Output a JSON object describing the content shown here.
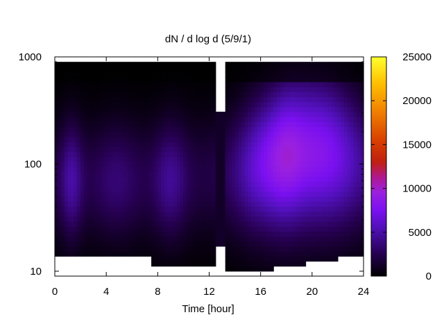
{
  "chart_data": {
    "type": "heatmap",
    "title": "dN / d log d (5/9/1)",
    "xlabel": "Time [hour]",
    "ylabel": "",
    "xlim": [
      0,
      24
    ],
    "ylim": [
      9,
      1000
    ],
    "y_scale": "log",
    "x_ticks": [
      "0",
      "4",
      "8",
      "12",
      "16",
      "20",
      "24"
    ],
    "y_ticks": [
      "10",
      "100",
      "1000"
    ],
    "colorbar": {
      "ticks": [
        "0",
        "5000",
        "10000",
        "15000",
        "20000",
        "25000"
      ],
      "range": [
        0,
        25000
      ],
      "palette": "black-blue-purple-red-orange-yellow"
    },
    "data_gap": {
      "x_start": 12.6,
      "x_end": 13.3
    },
    "grid": false,
    "colors": {
      "background_empty": "#ffffff",
      "frame": "#000000",
      "cmap_low": "#000000",
      "cmap_mid": "#9020ff",
      "cmap_high": "#ffff20"
    }
  }
}
